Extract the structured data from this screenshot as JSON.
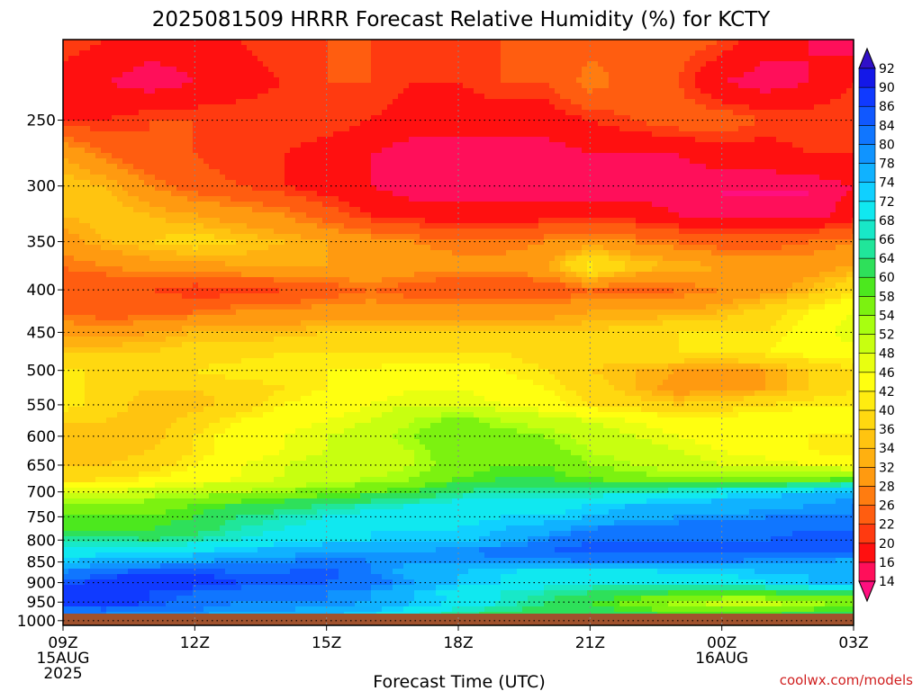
{
  "chart_data": {
    "type": "heatmap",
    "title": "2025081509 HRRR Forecast Relative Humidity (%) for KCTY",
    "xlabel": "Forecast Time (UTC)",
    "ylabel": "",
    "x_ticks": [
      {
        "hour": 0,
        "label": "09Z",
        "sub": [
          "15AUG",
          "2025"
        ]
      },
      {
        "hour": 3,
        "label": "12Z",
        "sub": []
      },
      {
        "hour": 6,
        "label": "15Z",
        "sub": []
      },
      {
        "hour": 9,
        "label": "18Z",
        "sub": []
      },
      {
        "hour": 12,
        "label": "21Z",
        "sub": []
      },
      {
        "hour": 15,
        "label": "00Z",
        "sub": [
          "16AUG"
        ]
      },
      {
        "hour": 18,
        "label": "03Z",
        "sub": []
      }
    ],
    "y_ticks": [
      250,
      300,
      350,
      400,
      450,
      500,
      550,
      600,
      650,
      700,
      750,
      800,
      850,
      900,
      950,
      1000
    ],
    "y_range": [
      200,
      1013
    ],
    "y_scale": "log-pressure",
    "colorbar": {
      "levels": [
        14,
        16,
        20,
        22,
        26,
        28,
        32,
        34,
        36,
        40,
        42,
        46,
        48,
        52,
        54,
        58,
        60,
        64,
        66,
        68,
        72,
        74,
        78,
        80,
        84,
        86,
        90,
        92
      ],
      "colors": [
        "#ff0f7f",
        "#ff0f5a",
        "#ff1010",
        "#ff3a10",
        "#ff5d10",
        "#ff7c10",
        "#ff9a10",
        "#ffb010",
        "#ffc410",
        "#ffd810",
        "#ffec10",
        "#ffff10",
        "#e8ff10",
        "#c8ff10",
        "#a8ff10",
        "#7cf210",
        "#4ce81e",
        "#2ee05a",
        "#20e69a",
        "#18e8c8",
        "#10e8f0",
        "#10d0ff",
        "#10b2ff",
        "#1094ff",
        "#1076ff",
        "#1058ff",
        "#103aff",
        "#1418e8",
        "#3010c8"
      ]
    },
    "hours": [
      0,
      1,
      2,
      3,
      4,
      5,
      6,
      7,
      8,
      9,
      10,
      11,
      12,
      13,
      14,
      15,
      16,
      17,
      18
    ],
    "levels_hpa": [
      200,
      225,
      250,
      275,
      300,
      325,
      350,
      375,
      400,
      425,
      450,
      475,
      500,
      525,
      550,
      575,
      600,
      625,
      650,
      675,
      700,
      725,
      750,
      775,
      800,
      825,
      850,
      875,
      900,
      925,
      950,
      975,
      1000
    ],
    "rh_rows": [
      [
        22,
        20,
        18,
        18,
        20,
        22,
        22,
        22,
        22,
        22,
        22,
        22,
        24,
        24,
        24,
        22,
        18,
        16,
        14
      ],
      [
        18,
        16,
        14,
        16,
        18,
        20,
        22,
        22,
        20,
        20,
        22,
        22,
        28,
        24,
        22,
        16,
        14,
        16,
        20
      ],
      [
        20,
        20,
        22,
        22,
        22,
        22,
        22,
        20,
        18,
        18,
        18,
        18,
        20,
        22,
        24,
        24,
        22,
        22,
        22
      ],
      [
        32,
        26,
        22,
        22,
        20,
        20,
        18,
        16,
        14,
        14,
        14,
        14,
        16,
        16,
        16,
        18,
        18,
        20,
        20
      ],
      [
        36,
        34,
        28,
        24,
        22,
        20,
        18,
        16,
        14,
        14,
        14,
        14,
        14,
        14,
        14,
        14,
        14,
        14,
        16
      ],
      [
        34,
        36,
        34,
        32,
        30,
        28,
        24,
        20,
        18,
        18,
        18,
        18,
        18,
        18,
        16,
        14,
        14,
        14,
        18
      ],
      [
        30,
        34,
        36,
        38,
        36,
        34,
        32,
        30,
        28,
        26,
        26,
        28,
        30,
        28,
        26,
        24,
        24,
        26,
        28
      ],
      [
        26,
        28,
        30,
        30,
        32,
        32,
        32,
        32,
        30,
        30,
        30,
        32,
        42,
        36,
        34,
        32,
        30,
        30,
        32
      ],
      [
        24,
        22,
        22,
        20,
        20,
        22,
        24,
        26,
        24,
        22,
        22,
        22,
        26,
        24,
        26,
        28,
        30,
        34,
        40
      ],
      [
        26,
        24,
        24,
        26,
        28,
        28,
        30,
        30,
        30,
        30,
        30,
        30,
        32,
        32,
        32,
        34,
        38,
        42,
        46
      ],
      [
        30,
        30,
        32,
        34,
        34,
        34,
        36,
        36,
        36,
        36,
        36,
        36,
        36,
        38,
        40,
        40,
        40,
        44,
        48
      ],
      [
        36,
        36,
        36,
        38,
        38,
        40,
        40,
        40,
        40,
        40,
        40,
        38,
        38,
        38,
        40,
        40,
        42,
        44,
        44
      ],
      [
        40,
        40,
        40,
        40,
        42,
        42,
        42,
        42,
        44,
        44,
        42,
        40,
        36,
        34,
        32,
        30,
        32,
        36,
        40
      ],
      [
        42,
        38,
        36,
        36,
        38,
        40,
        42,
        44,
        46,
        46,
        44,
        42,
        38,
        34,
        30,
        30,
        32,
        36,
        40
      ],
      [
        42,
        38,
        34,
        34,
        38,
        42,
        44,
        46,
        48,
        48,
        46,
        44,
        40,
        38,
        36,
        38,
        40,
        42,
        42
      ],
      [
        36,
        36,
        34,
        38,
        42,
        44,
        46,
        48,
        52,
        56,
        52,
        50,
        48,
        46,
        44,
        44,
        44,
        44,
        44
      ],
      [
        34,
        34,
        34,
        40,
        44,
        46,
        48,
        50,
        54,
        58,
        56,
        54,
        50,
        48,
        46,
        44,
        42,
        42,
        42
      ],
      [
        34,
        34,
        36,
        40,
        44,
        46,
        48,
        50,
        52,
        58,
        58,
        56,
        52,
        50,
        48,
        46,
        44,
        42,
        40
      ],
      [
        36,
        36,
        38,
        42,
        46,
        48,
        50,
        50,
        52,
        56,
        58,
        58,
        54,
        52,
        50,
        48,
        48,
        46,
        44
      ],
      [
        38,
        40,
        42,
        44,
        46,
        48,
        50,
        52,
        54,
        58,
        60,
        60,
        58,
        56,
        54,
        54,
        56,
        56,
        58
      ],
      [
        48,
        48,
        50,
        52,
        52,
        54,
        56,
        58,
        60,
        64,
        66,
        66,
        66,
        66,
        68,
        70,
        72,
        74,
        76
      ],
      [
        54,
        54,
        56,
        58,
        60,
        62,
        64,
        66,
        68,
        70,
        70,
        70,
        72,
        74,
        74,
        76,
        76,
        78,
        80
      ],
      [
        58,
        58,
        58,
        60,
        64,
        66,
        68,
        70,
        70,
        70,
        72,
        72,
        74,
        76,
        78,
        78,
        80,
        80,
        80
      ],
      [
        60,
        60,
        60,
        62,
        66,
        68,
        70,
        72,
        72,
        72,
        74,
        76,
        80,
        82,
        82,
        82,
        82,
        84,
        84
      ],
      [
        66,
        66,
        64,
        66,
        68,
        70,
        72,
        72,
        72,
        72,
        76,
        80,
        84,
        84,
        84,
        84,
        84,
        86,
        86
      ],
      [
        70,
        70,
        70,
        72,
        74,
        76,
        78,
        78,
        78,
        80,
        82,
        84,
        86,
        86,
        86,
        86,
        86,
        86,
        84
      ],
      [
        74,
        76,
        76,
        78,
        80,
        80,
        82,
        80,
        78,
        78,
        78,
        78,
        80,
        80,
        80,
        80,
        78,
        78,
        76
      ],
      [
        80,
        84,
        86,
        86,
        84,
        84,
        86,
        80,
        76,
        74,
        72,
        70,
        70,
        70,
        72,
        72,
        74,
        74,
        76
      ],
      [
        84,
        88,
        88,
        88,
        86,
        84,
        84,
        82,
        78,
        74,
        72,
        70,
        68,
        68,
        68,
        70,
        72,
        74,
        76
      ],
      [
        88,
        88,
        86,
        84,
        82,
        82,
        80,
        78,
        74,
        70,
        68,
        66,
        64,
        62,
        60,
        60,
        60,
        62,
        64
      ],
      [
        88,
        90,
        86,
        82,
        80,
        80,
        80,
        78,
        74,
        72,
        68,
        64,
        60,
        56,
        52,
        50,
        50,
        52,
        54
      ],
      [
        82,
        82,
        80,
        80,
        78,
        78,
        76,
        74,
        70,
        66,
        64,
        62,
        62,
        60,
        58,
        58,
        58,
        60,
        60
      ],
      [
        76,
        76,
        76,
        76,
        74,
        74,
        72,
        70,
        66,
        62,
        62,
        62,
        62,
        62,
        62,
        62,
        62,
        64,
        64
      ]
    ],
    "grid": "dotted"
  },
  "credit": "coolwx.com/models"
}
